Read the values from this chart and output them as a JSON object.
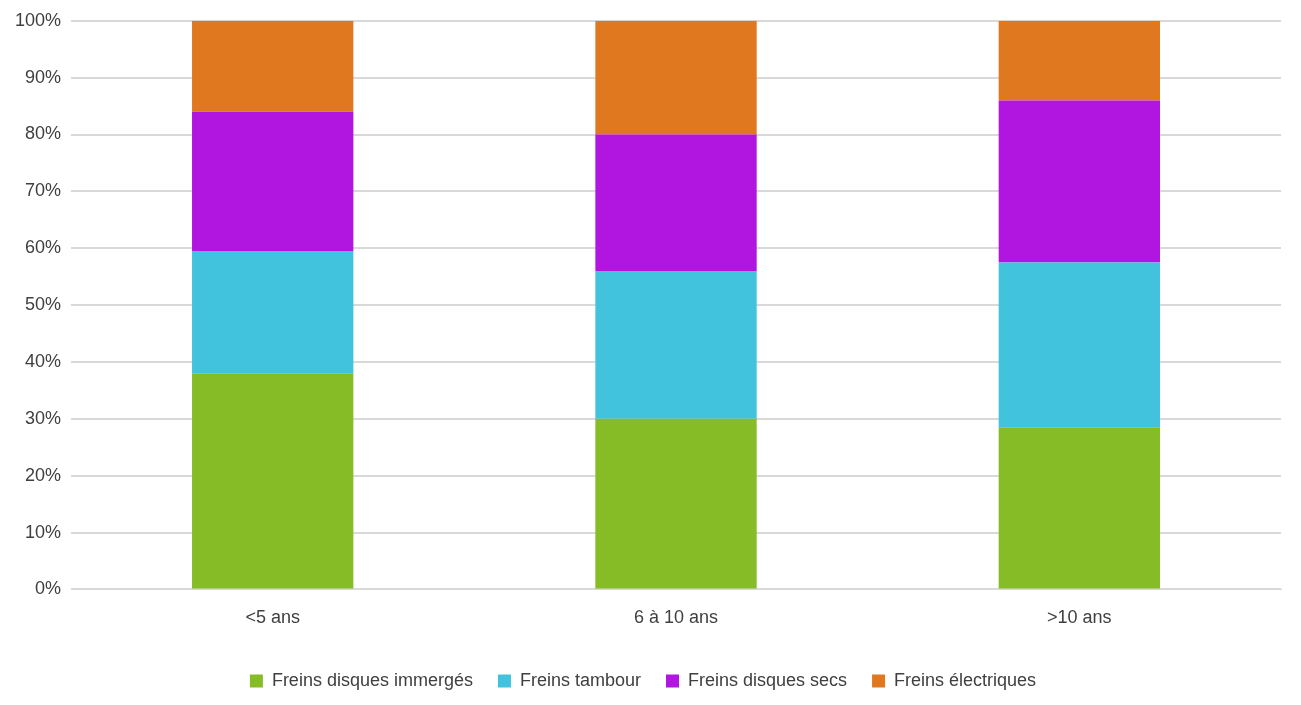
{
  "chart_data": {
    "type": "bar",
    "stacked": true,
    "categories": [
      "<5 ans",
      "6 à 10 ans",
      ">10 ans"
    ],
    "series": [
      {
        "name": "Freins disques immergés",
        "color": "#86bc25",
        "values": [
          38,
          30,
          28.5
        ]
      },
      {
        "name": "Freins tambour",
        "color": "#41c3de",
        "values": [
          21.5,
          26,
          29
        ]
      },
      {
        "name": "Freins disques secs",
        "color": "#b016e0",
        "values": [
          24.5,
          24,
          28.5
        ]
      },
      {
        "name": "Freins électriques",
        "color": "#e07820",
        "values": [
          16,
          20,
          14
        ]
      }
    ],
    "ylim": [
      0,
      100
    ],
    "yticks": [
      {
        "value": 0,
        "label": "0%"
      },
      {
        "value": 10,
        "label": "10%"
      },
      {
        "value": 20,
        "label": "20%"
      },
      {
        "value": 30,
        "label": "30%"
      },
      {
        "value": 40,
        "label": "40%"
      },
      {
        "value": 50,
        "label": "50%"
      },
      {
        "value": 60,
        "label": "60%"
      },
      {
        "value": 70,
        "label": "70%"
      },
      {
        "value": 80,
        "label": "80%"
      },
      {
        "value": 90,
        "label": "90%"
      },
      {
        "value": 100,
        "label": "100%"
      }
    ],
    "grid": "y",
    "legend": "bottom"
  }
}
